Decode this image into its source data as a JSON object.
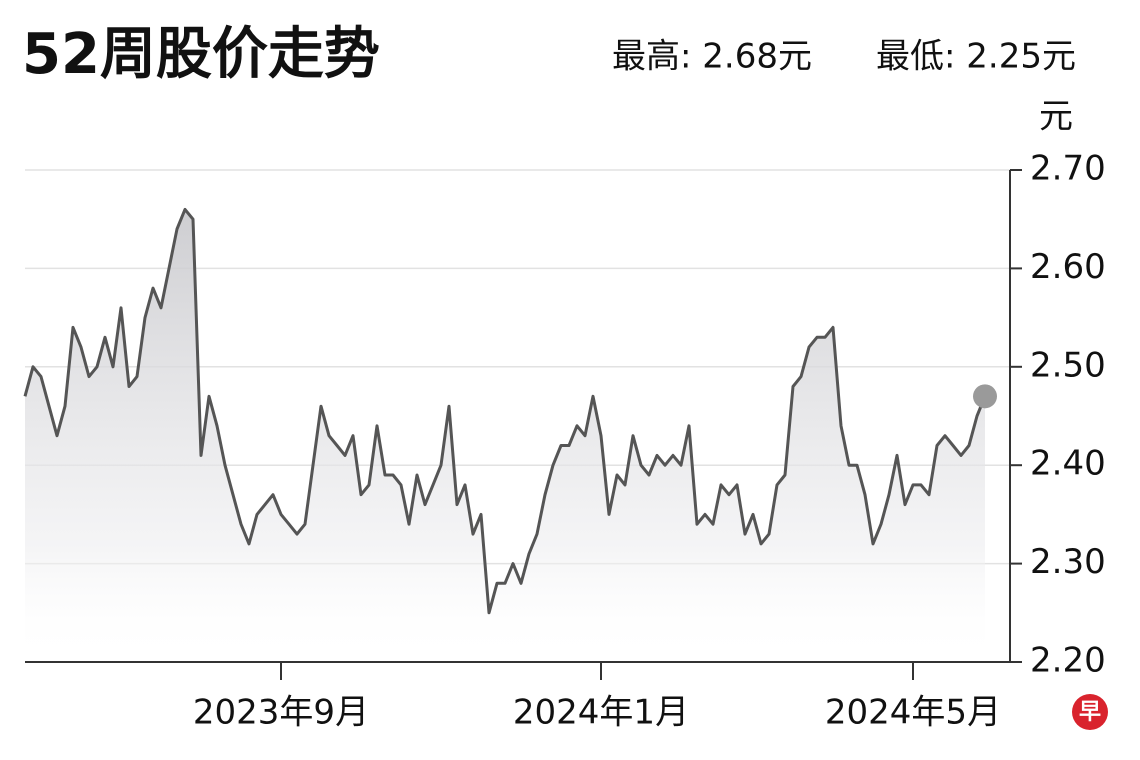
{
  "chart_data": {
    "type": "line",
    "title": "52周股价走势",
    "annotations": [
      "最高: 2.68元",
      "最低: 2.25元"
    ],
    "y_unit": "元",
    "logo": "早",
    "color": "#555555",
    "grid": true,
    "ylim": [
      2.2,
      2.7
    ],
    "yticks": [
      {
        "value": 2.7,
        "label": "2.70"
      },
      {
        "value": 2.6,
        "label": "2.60"
      },
      {
        "value": 2.5,
        "label": "2.50"
      },
      {
        "value": 2.4,
        "label": "2.40"
      },
      {
        "value": 2.3,
        "label": "2.30"
      },
      {
        "value": 2.2,
        "label": "2.20"
      }
    ],
    "categories": [
      null,
      null,
      null,
      null,
      null,
      null,
      null,
      null,
      null,
      null,
      null,
      null,
      null,
      null,
      null,
      null,
      null,
      null,
      null,
      null,
      null,
      null,
      null,
      null,
      null,
      null,
      null,
      null,
      null,
      null,
      null,
      null,
      "2023年9月",
      null,
      null,
      null,
      null,
      null,
      null,
      null,
      null,
      null,
      null,
      null,
      null,
      null,
      null,
      null,
      null,
      null,
      null,
      null,
      null,
      null,
      null,
      null,
      null,
      null,
      null,
      null,
      null,
      null,
      null,
      null,
      null,
      null,
      null,
      null,
      null,
      null,
      null,
      null,
      "2024年1月",
      null,
      null,
      null,
      null,
      null,
      null,
      null,
      null,
      null,
      null,
      null,
      null,
      null,
      null,
      null,
      null,
      null,
      null,
      null,
      null,
      null,
      null,
      null,
      null,
      null,
      null,
      null,
      null,
      null,
      null,
      null,
      null,
      null,
      null,
      null,
      null,
      null,
      null,
      "2024年5月",
      null,
      null,
      null,
      null,
      null,
      null,
      null,
      null,
      null
    ],
    "values": [
      2.47,
      2.5,
      2.49,
      2.46,
      2.43,
      2.46,
      2.54,
      2.52,
      2.49,
      2.5,
      2.53,
      2.5,
      2.56,
      2.48,
      2.49,
      2.55,
      2.58,
      2.56,
      2.6,
      2.64,
      2.66,
      2.65,
      2.41,
      2.47,
      2.44,
      2.4,
      2.37,
      2.34,
      2.32,
      2.35,
      2.36,
      2.37,
      2.35,
      2.34,
      2.33,
      2.34,
      2.4,
      2.46,
      2.43,
      2.42,
      2.41,
      2.43,
      2.37,
      2.38,
      2.44,
      2.39,
      2.39,
      2.38,
      2.34,
      2.39,
      2.36,
      2.38,
      2.4,
      2.46,
      2.36,
      2.38,
      2.33,
      2.35,
      2.25,
      2.28,
      2.28,
      2.3,
      2.28,
      2.31,
      2.33,
      2.37,
      2.4,
      2.42,
      2.42,
      2.44,
      2.43,
      2.47,
      2.43,
      2.35,
      2.39,
      2.38,
      2.43,
      2.4,
      2.39,
      2.41,
      2.4,
      2.41,
      2.4,
      2.44,
      2.34,
      2.35,
      2.34,
      2.38,
      2.37,
      2.38,
      2.33,
      2.35,
      2.32,
      2.33,
      2.38,
      2.39,
      2.48,
      2.49,
      2.52,
      2.53,
      2.53,
      2.54,
      2.44,
      2.4,
      2.4,
      2.37,
      2.32,
      2.34,
      2.37,
      2.41,
      2.36,
      2.38,
      2.38,
      2.37,
      2.42,
      2.43,
      2.42,
      2.41,
      2.42,
      2.45,
      2.47
    ]
  }
}
